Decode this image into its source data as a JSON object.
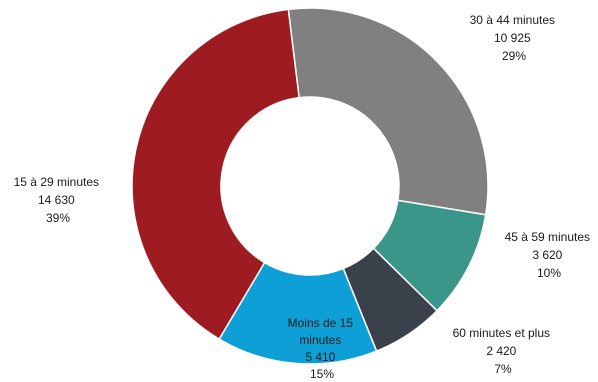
{
  "chart_data": {
    "type": "pie",
    "donut": true,
    "title": "",
    "slices": [
      {
        "label": "30 à 44 minutes",
        "value_text": "10 925",
        "pct_text": "29%",
        "value": 10925,
        "color": "#808080"
      },
      {
        "label": "45 à 59 minutes",
        "value_text": "3 620",
        "pct_text": "10%",
        "value": 3620,
        "color": "#3a9689"
      },
      {
        "label": "60 minutes et plus",
        "value_text": "2 420",
        "pct_text": "7%",
        "value": 2420,
        "color": "#3b414b"
      },
      {
        "label": "Moins de 15 minutes",
        "value_text": "5 410",
        "pct_text": "15%",
        "value": 5410,
        "color": "#0e9fd6"
      },
      {
        "label": "15 à 29 minutes",
        "value_text": "14 630",
        "pct_text": "39%",
        "value": 14630,
        "color": "#9e1b22"
      }
    ]
  }
}
